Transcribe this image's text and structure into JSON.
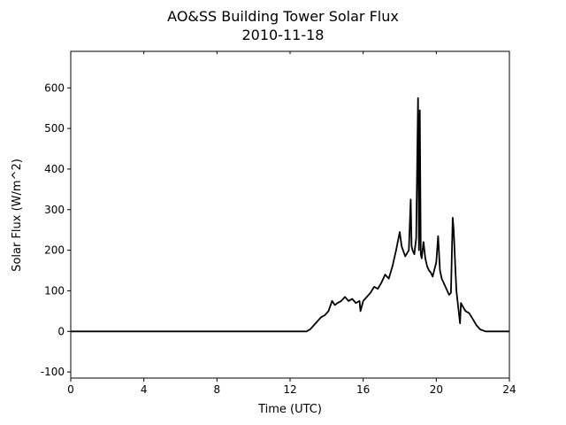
{
  "chart_data": {
    "type": "line",
    "title": "AO&SS Building Tower Solar Flux",
    "subtitle": "2010-11-18",
    "xlabel": "Time (UTC)",
    "ylabel": "Solar Flux (W/m^2)",
    "xlim": [
      0,
      24
    ],
    "ylim": [
      -115,
      690
    ],
    "xticks": [
      "0",
      "4",
      "8",
      "12",
      "16",
      "20",
      "24"
    ],
    "yticks": [
      "-100",
      "0",
      "100",
      "200",
      "300",
      "400",
      "500",
      "600"
    ],
    "grid": false,
    "line_color": "#000000",
    "series": [
      {
        "x": [
          0,
          6,
          12.9,
          13.1,
          13.4,
          13.7,
          13.9,
          14.1,
          14.3,
          14.45,
          14.6,
          14.8,
          15.0,
          15.2,
          15.4,
          15.6,
          15.8,
          15.85,
          16.0,
          16.2,
          16.4,
          16.6,
          16.8,
          17.0,
          17.2,
          17.4,
          17.6,
          17.8,
          18.0,
          18.1,
          18.3,
          18.5,
          18.6,
          18.65,
          18.7,
          18.8,
          18.9,
          19.0,
          19.05,
          19.1,
          19.15,
          19.2,
          19.3,
          19.4,
          19.5,
          19.6,
          19.7,
          19.8,
          20.0,
          20.1,
          20.2,
          20.3,
          20.5,
          20.7,
          20.8,
          20.9,
          20.95,
          21.0,
          21.05,
          21.1,
          21.2,
          21.3,
          21.35,
          21.4,
          21.6,
          21.8,
          22.0,
          22.2,
          22.4,
          22.7,
          23.0,
          24.0
        ],
        "y": [
          0,
          0,
          0,
          5,
          20,
          35,
          40,
          50,
          75,
          65,
          70,
          75,
          85,
          75,
          80,
          70,
          75,
          50,
          75,
          85,
          95,
          110,
          105,
          120,
          140,
          130,
          160,
          200,
          245,
          210,
          185,
          200,
          325,
          210,
          200,
          190,
          230,
          575,
          200,
          545,
          190,
          180,
          220,
          180,
          160,
          150,
          145,
          135,
          170,
          235,
          150,
          130,
          110,
          90,
          95,
          280,
          250,
          200,
          150,
          100,
          60,
          20,
          70,
          65,
          50,
          45,
          30,
          15,
          5,
          0,
          0,
          0
        ]
      }
    ]
  }
}
